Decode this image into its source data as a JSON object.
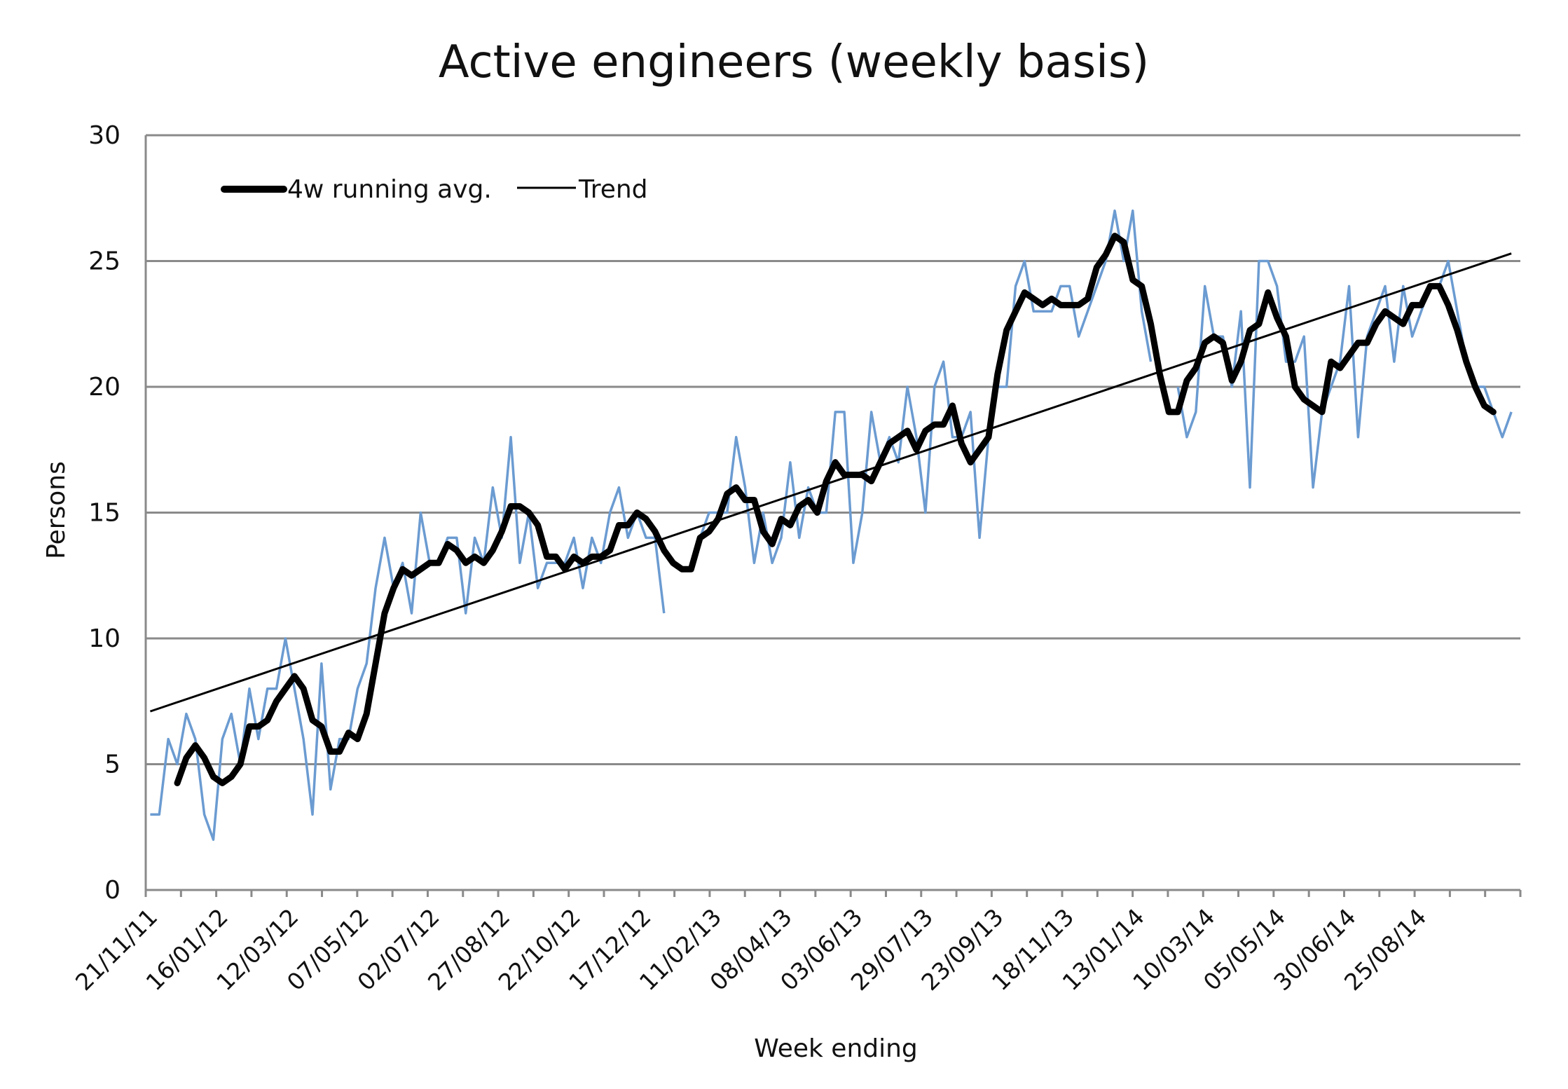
{
  "chart_data": {
    "type": "line",
    "title": "Active engineers (weekly basis)",
    "xlabel": "Week ending",
    "ylabel": "Persons",
    "ylim": [
      0,
      30
    ],
    "yticks": [
      0,
      5,
      10,
      15,
      20,
      25,
      30
    ],
    "grid": true,
    "legend_position": "top-left",
    "x_tick_labels": [
      "21/11/11",
      "16/01/12",
      "12/03/12",
      "07/05/12",
      "02/07/12",
      "27/08/12",
      "22/10/12",
      "17/12/12",
      "11/02/13",
      "08/04/13",
      "03/06/13",
      "29/07/13",
      "23/09/13",
      "18/11/13",
      "13/01/14",
      "10/03/14",
      "05/05/14",
      "30/06/14",
      "25/08/14"
    ],
    "series": [
      {
        "key": "weekly",
        "color": "#6b9bd1",
        "values": [
          3,
          3,
          6,
          5,
          7,
          6,
          3,
          2,
          6,
          7,
          5,
          8,
          6,
          8,
          8,
          10,
          8,
          6,
          3,
          9,
          4,
          6,
          6,
          8,
          9,
          12,
          14,
          12,
          13,
          11,
          15,
          13,
          13,
          14,
          14,
          11,
          14,
          13,
          16,
          14,
          18,
          13,
          15,
          12,
          13,
          13,
          13,
          14,
          12,
          14,
          13,
          15,
          16,
          14,
          15,
          14,
          14,
          11,
          null,
          null,
          13,
          14,
          15,
          15,
          15,
          18,
          16,
          13,
          15,
          13,
          14,
          17,
          14,
          16,
          15,
          15,
          19,
          19,
          13,
          15,
          19,
          17,
          18,
          17,
          20,
          18,
          15,
          20,
          21,
          18,
          18,
          19,
          14,
          18,
          20,
          20,
          24,
          25,
          23,
          23,
          23,
          24,
          24,
          22,
          23,
          24,
          25,
          27,
          25,
          27,
          23,
          21,
          null,
          null,
          20,
          18,
          19,
          24,
          22,
          22,
          20,
          23,
          16,
          25,
          25,
          24,
          21,
          21,
          22,
          16,
          19,
          20,
          21,
          24,
          18,
          22,
          23,
          24,
          21,
          24,
          22,
          23,
          24,
          24,
          25,
          23,
          21,
          20,
          20,
          19,
          18,
          19
        ]
      },
      {
        "key": "avg",
        "name": "4w running avg.",
        "color": "#000000",
        "values": [
          null,
          null,
          null,
          4.25,
          5.25,
          5.75,
          5.25,
          4.5,
          4.25,
          4.5,
          5,
          6.5,
          6.5,
          6.75,
          7.5,
          8,
          8.5,
          8,
          6.75,
          6.5,
          5.5,
          5.5,
          6.25,
          6,
          7,
          9,
          11,
          12,
          12.75,
          12.5,
          12.75,
          13,
          13,
          13.75,
          13.5,
          13,
          13.25,
          13,
          13.5,
          14.25,
          15.25,
          15.25,
          15,
          14.5,
          13.25,
          13.25,
          12.75,
          13.25,
          13,
          13.25,
          13.25,
          13.5,
          14.5,
          14.5,
          15,
          14.75,
          14.25,
          13.5,
          13,
          12.75,
          12.75,
          14,
          14.25,
          14.75,
          15.75,
          16,
          15.5,
          15.5,
          14.25,
          13.75,
          14.75,
          14.5,
          15.25,
          15.5,
          15,
          16.25,
          17,
          16.5,
          16.5,
          16.5,
          16.25,
          17,
          17.75,
          18,
          18.25,
          17.5,
          18.25,
          18.5,
          18.5,
          19.25,
          17.75,
          17,
          17.5,
          18,
          20.5,
          22.25,
          23,
          23.75,
          23.5,
          23.25,
          23.5,
          23.25,
          23.25,
          23.25,
          23.5,
          24.75,
          25.25,
          26,
          25.75,
          24.25,
          24,
          22.5,
          20.5,
          19,
          19,
          20.25,
          20.75,
          21.75,
          22,
          21.75,
          20.25,
          21,
          22.25,
          22.5,
          23.75,
          22.75,
          22,
          20,
          19.5,
          19.25,
          19,
          21,
          20.75,
          21.25,
          21.75,
          21.75,
          22.5,
          23,
          22.75,
          22.5,
          23.25,
          23.25,
          24,
          24,
          23.25,
          22.25,
          21,
          20,
          19.25,
          19
        ]
      },
      {
        "key": "trend",
        "name": "Trend",
        "color": "#000000",
        "values": [
          7.1,
          25.3
        ]
      }
    ]
  }
}
